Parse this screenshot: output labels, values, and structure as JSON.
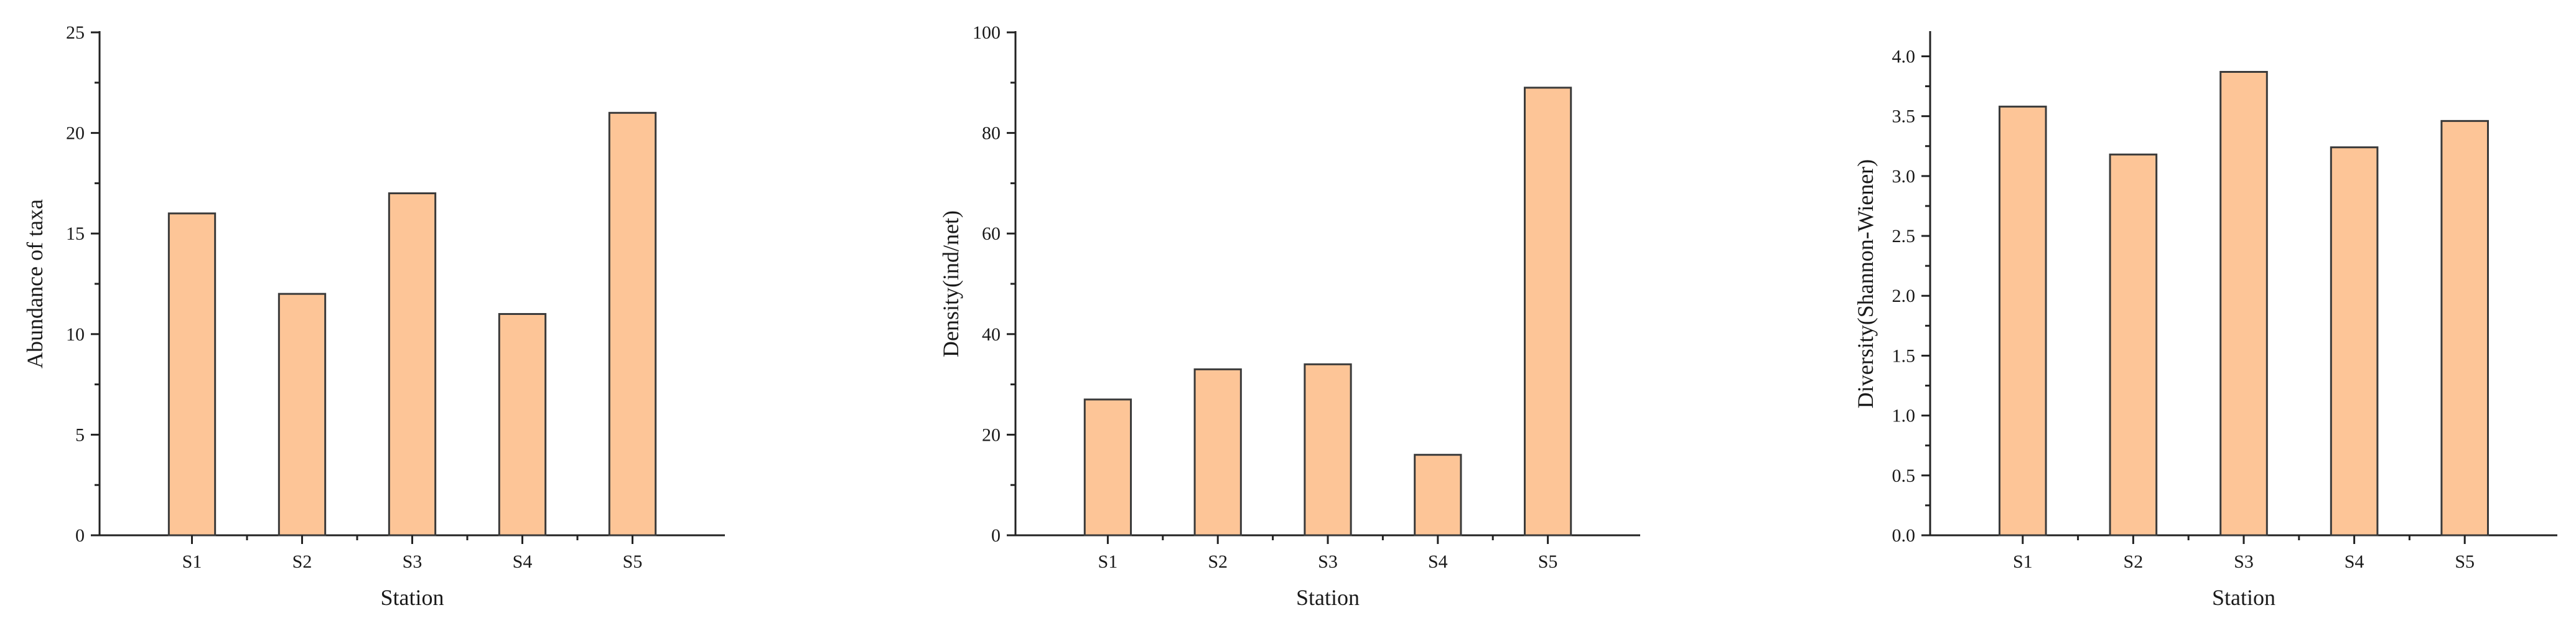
{
  "chart_data": [
    {
      "type": "bar",
      "categories": [
        "S1",
        "S2",
        "S3",
        "S4",
        "S5"
      ],
      "values": [
        16,
        12,
        17,
        11,
        21
      ],
      "xlabel": "Station",
      "ylabel": "Abundance of taxa",
      "ylim": [
        0,
        25
      ],
      "yticks": [
        0,
        5,
        10,
        15,
        20,
        25
      ],
      "ytick_labels": [
        "0",
        "5",
        "10",
        "15",
        "20",
        "25"
      ],
      "bar_color": "#FDC597",
      "grid": false
    },
    {
      "type": "bar",
      "categories": [
        "S1",
        "S2",
        "S3",
        "S4",
        "S5"
      ],
      "values": [
        27,
        33,
        34,
        16,
        89
      ],
      "xlabel": "Station",
      "ylabel": "Density(ind/net)",
      "ylim": [
        0,
        100
      ],
      "yticks": [
        0,
        20,
        40,
        60,
        80,
        100
      ],
      "ytick_labels": [
        "0",
        "20",
        "40",
        "60",
        "80",
        "100"
      ],
      "bar_color": "#FDC597",
      "grid": false
    },
    {
      "type": "bar",
      "categories": [
        "S1",
        "S2",
        "S3",
        "S4",
        "S5"
      ],
      "values": [
        3.58,
        3.18,
        3.87,
        3.24,
        3.46
      ],
      "xlabel": "Station",
      "ylabel": "Diversity(Shannon-Wiener)",
      "ylim": [
        0,
        4.2
      ],
      "yticks": [
        0,
        0.5,
        1.0,
        1.5,
        2.0,
        2.5,
        3.0,
        3.5,
        4.0
      ],
      "ytick_labels": [
        "0.0",
        "0.5",
        "1.0",
        "1.5",
        "2.0",
        "2.5",
        "3.0",
        "3.5",
        "4.0"
      ],
      "bar_color": "#FDC597",
      "grid": false
    }
  ]
}
